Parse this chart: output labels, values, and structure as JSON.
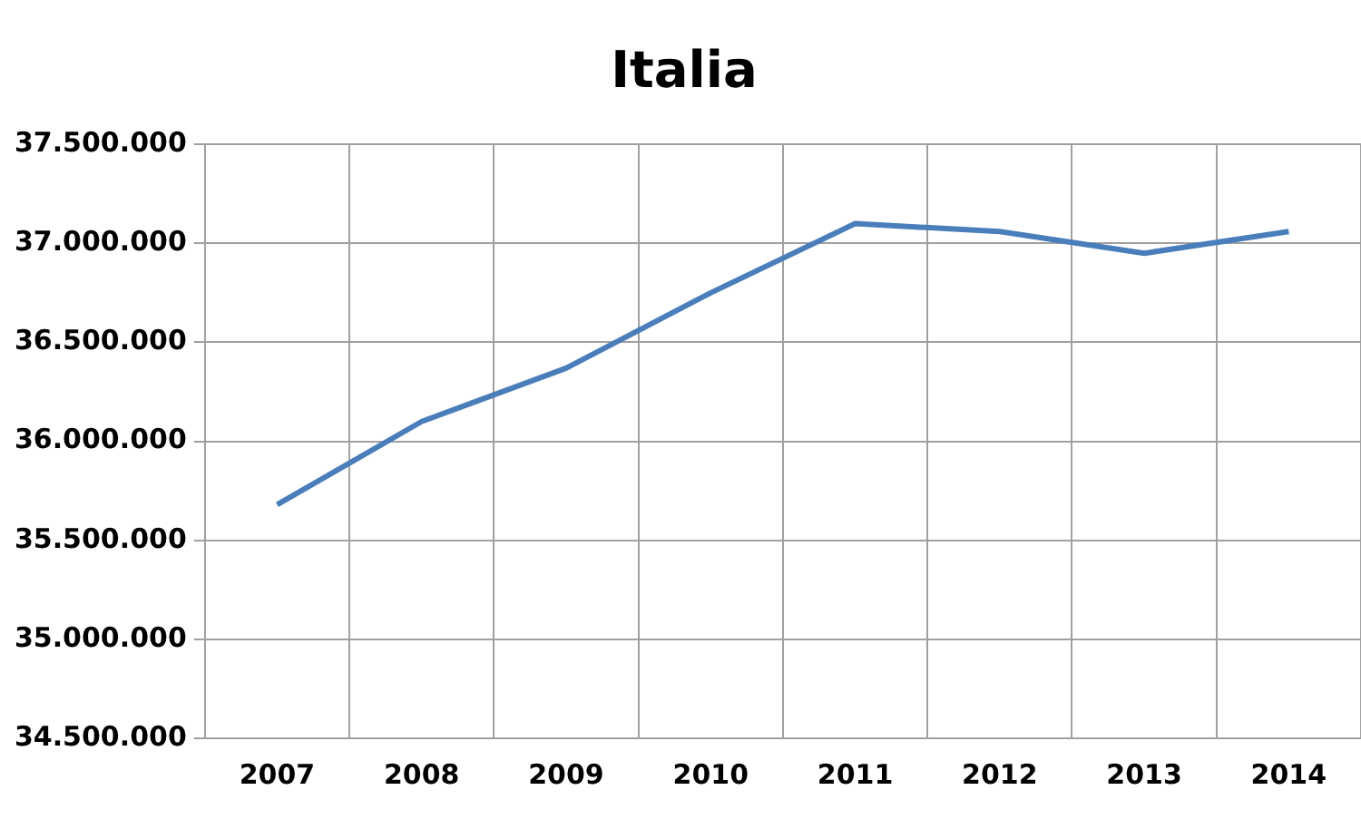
{
  "chart_data": {
    "type": "line",
    "title": "Italia",
    "categories": [
      "2007",
      "2008",
      "2009",
      "2010",
      "2011",
      "2012",
      "2013",
      "2014"
    ],
    "series": [
      {
        "color": "#4a7ebb",
        "values": [
          35680000,
          36100000,
          36370000,
          36750000,
          37100000,
          37060000,
          36950000,
          37060000
        ]
      }
    ],
    "ylim": [
      34500000,
      37500000
    ],
    "yticks": [
      {
        "value": 34500000,
        "label": "34.500.000"
      },
      {
        "value": 35000000,
        "label": "35.000.000"
      },
      {
        "value": 35500000,
        "label": "35.500.000"
      },
      {
        "value": 36000000,
        "label": "36.000.000"
      },
      {
        "value": 36500000,
        "label": "36.500.000"
      },
      {
        "value": 37000000,
        "label": "37.000.000"
      },
      {
        "value": 37500000,
        "label": "37.500.000"
      }
    ],
    "grid": true,
    "legend": false,
    "marker": "none",
    "line_style": "solid"
  }
}
